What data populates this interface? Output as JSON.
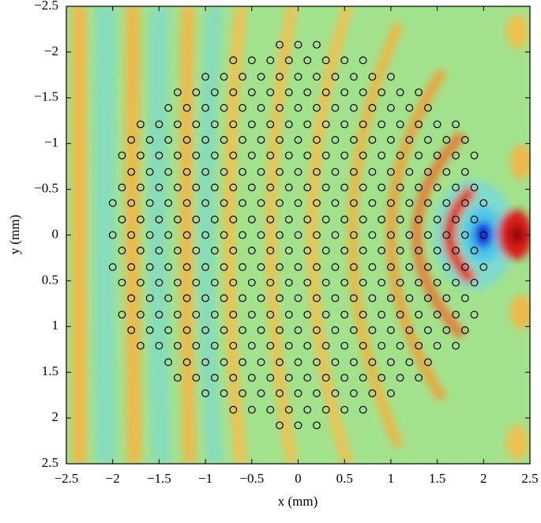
{
  "chart_data": {
    "type": "scatter",
    "xlabel": "x (mm)",
    "ylabel": "y (mm)",
    "xlim": [
      -2.5,
      2.5
    ],
    "ylim": [
      2.5,
      -2.5
    ],
    "xticks": [
      {
        "value": -2.5,
        "label": "−2.5"
      },
      {
        "value": -2,
        "label": "−2"
      },
      {
        "value": -1.5,
        "label": "−1.5"
      },
      {
        "value": -1,
        "label": "−1"
      },
      {
        "value": -0.5,
        "label": "−0.5"
      },
      0,
      0.5,
      1,
      1.5,
      2,
      2.5
    ],
    "yticks": [
      {
        "value": -2.5,
        "label": "−2.5"
      },
      {
        "value": -2,
        "label": "−2"
      },
      {
        "value": -1.5,
        "label": "−1.5"
      },
      {
        "value": -1,
        "label": "−1"
      },
      {
        "value": -0.5,
        "label": "−0.5"
      },
      0,
      0.5,
      1,
      1.5,
      2,
      2.5
    ],
    "marker_color": "#000000",
    "rows": [
      {
        "y": -2.08,
        "x": [
          -0.2,
          0,
          0.2
        ]
      },
      {
        "y": -1.91,
        "x": [
          -0.7,
          -0.5,
          -0.3,
          -0.1,
          0.1,
          0.3,
          0.5,
          0.7
        ]
      },
      {
        "y": -1.73,
        "x": [
          -1,
          -0.8,
          -0.6,
          -0.4,
          -0.2,
          0,
          0.2,
          0.4,
          0.6,
          0.8,
          1
        ]
      },
      {
        "y": -1.56,
        "x": [
          -1.3,
          -1.1,
          -0.9,
          -0.7,
          -0.5,
          -0.3,
          -0.1,
          0.1,
          0.3,
          0.5,
          0.7,
          0.9,
          1.1,
          1.3
        ]
      },
      {
        "y": -1.39,
        "x": [
          -1.4,
          -1.2,
          -1,
          -0.8,
          -0.6,
          -0.4,
          -0.2,
          0,
          0.2,
          0.4,
          0.6,
          0.8,
          1,
          1.2,
          1.4
        ]
      },
      {
        "y": -1.21,
        "x": [
          -1.7,
          -1.5,
          -1.3,
          -1.1,
          -0.9,
          -0.7,
          -0.5,
          -0.3,
          -0.1,
          0.1,
          0.3,
          0.5,
          0.7,
          0.9,
          1.1,
          1.3,
          1.5,
          1.7
        ]
      },
      {
        "y": -1.04,
        "x": [
          -1.8,
          -1.6,
          -1.4,
          -1.2,
          -1,
          -0.8,
          -0.6,
          -0.4,
          -0.2,
          0,
          0.2,
          0.4,
          0.6,
          0.8,
          1,
          1.2,
          1.4,
          1.6,
          1.8
        ]
      },
      {
        "y": -0.87,
        "x": [
          -1.9,
          -1.7,
          -1.5,
          -1.3,
          -1.1,
          -0.9,
          -0.7,
          -0.5,
          -0.3,
          -0.1,
          0.1,
          0.3,
          0.5,
          0.7,
          0.9,
          1.1,
          1.3,
          1.5,
          1.7,
          1.9
        ]
      },
      {
        "y": -0.69,
        "x": [
          -1.8,
          -1.6,
          -1.4,
          -1.2,
          -1,
          -0.8,
          -0.6,
          -0.4,
          -0.2,
          0,
          0.2,
          0.4,
          0.6,
          0.8,
          1,
          1.2,
          1.4,
          1.6,
          1.8
        ]
      },
      {
        "y": -0.52,
        "x": [
          -1.9,
          -1.7,
          -1.5,
          -1.3,
          -1.1,
          -0.9,
          -0.7,
          -0.5,
          -0.3,
          -0.1,
          0.1,
          0.3,
          0.5,
          0.7,
          0.9,
          1.1,
          1.3,
          1.5,
          1.7,
          1.9
        ]
      },
      {
        "y": -0.35,
        "x": [
          -2,
          -1.8,
          -1.6,
          -1.4,
          -1.2,
          -1,
          -0.8,
          -0.6,
          -0.4,
          -0.2,
          0,
          0.2,
          0.4,
          0.6,
          0.8,
          1,
          1.2,
          1.4,
          1.6,
          1.8,
          2
        ]
      },
      {
        "y": -0.17,
        "x": [
          -1.9,
          -1.7,
          -1.5,
          -1.3,
          -1.1,
          -0.9,
          -0.7,
          -0.5,
          -0.3,
          -0.1,
          0.1,
          0.3,
          0.5,
          0.7,
          0.9,
          1.1,
          1.3,
          1.5,
          1.7,
          1.9
        ]
      },
      {
        "y": 0,
        "x": [
          -2,
          -1.8,
          -1.6,
          -1.4,
          -1.2,
          -1,
          -0.8,
          -0.6,
          -0.4,
          -0.2,
          0,
          0.2,
          0.4,
          0.6,
          0.8,
          1,
          1.2,
          1.4,
          1.6,
          1.8,
          2
        ]
      },
      {
        "y": 0.17,
        "x": [
          -1.9,
          -1.7,
          -1.5,
          -1.3,
          -1.1,
          -0.9,
          -0.7,
          -0.5,
          -0.3,
          -0.1,
          0.1,
          0.3,
          0.5,
          0.7,
          0.9,
          1.1,
          1.3,
          1.5,
          1.7,
          1.9
        ]
      },
      {
        "y": 0.35,
        "x": [
          -2,
          -1.8,
          -1.6,
          -1.4,
          -1.2,
          -1,
          -0.8,
          -0.6,
          -0.4,
          -0.2,
          0,
          0.2,
          0.4,
          0.6,
          0.8,
          1,
          1.2,
          1.4,
          1.6,
          1.8,
          2
        ]
      },
      {
        "y": 0.52,
        "x": [
          -1.9,
          -1.7,
          -1.5,
          -1.3,
          -1.1,
          -0.9,
          -0.7,
          -0.5,
          -0.3,
          -0.1,
          0.1,
          0.3,
          0.5,
          0.7,
          0.9,
          1.1,
          1.3,
          1.5,
          1.7,
          1.9
        ]
      },
      {
        "y": 0.69,
        "x": [
          -1.8,
          -1.6,
          -1.4,
          -1.2,
          -1,
          -0.8,
          -0.6,
          -0.4,
          -0.2,
          0,
          0.2,
          0.4,
          0.6,
          0.8,
          1,
          1.2,
          1.4,
          1.6,
          1.8
        ]
      },
      {
        "y": 0.87,
        "x": [
          -1.9,
          -1.7,
          -1.5,
          -1.3,
          -1.1,
          -0.9,
          -0.7,
          -0.5,
          -0.3,
          -0.1,
          0.1,
          0.3,
          0.5,
          0.7,
          0.9,
          1.1,
          1.3,
          1.5,
          1.7,
          1.9
        ]
      },
      {
        "y": 1.04,
        "x": [
          -1.8,
          -1.6,
          -1.4,
          -1.2,
          -1,
          -0.8,
          -0.6,
          -0.4,
          -0.2,
          0,
          0.2,
          0.4,
          0.6,
          0.8,
          1,
          1.2,
          1.4,
          1.6,
          1.8
        ]
      },
      {
        "y": 1.21,
        "x": [
          -1.7,
          -1.5,
          -1.3,
          -1.1,
          -0.9,
          -0.7,
          -0.5,
          -0.3,
          -0.1,
          0.1,
          0.3,
          0.5,
          0.7,
          0.9,
          1.1,
          1.3,
          1.5,
          1.7
        ]
      },
      {
        "y": 1.39,
        "x": [
          -1.4,
          -1.2,
          -1,
          -0.8,
          -0.6,
          -0.4,
          -0.2,
          0,
          0.2,
          0.4,
          0.6,
          0.8,
          1,
          1.2,
          1.4
        ]
      },
      {
        "y": 1.56,
        "x": [
          -1.3,
          -1.1,
          -0.9,
          -0.7,
          -0.5,
          -0.3,
          -0.1,
          0.1,
          0.3,
          0.5,
          0.7,
          0.9,
          1.1,
          1.3
        ]
      },
      {
        "y": 1.73,
        "x": [
          -1,
          -0.8,
          -0.6,
          -0.4,
          -0.2,
          0,
          0.2,
          0.4,
          0.6,
          0.8,
          1
        ]
      },
      {
        "y": 1.91,
        "x": [
          -0.7,
          -0.5,
          -0.3,
          -0.1,
          0.1,
          0.3,
          0.5,
          0.7
        ]
      },
      {
        "y": 2.08,
        "x": [
          -0.2,
          0,
          0.2
        ]
      }
    ]
  }
}
